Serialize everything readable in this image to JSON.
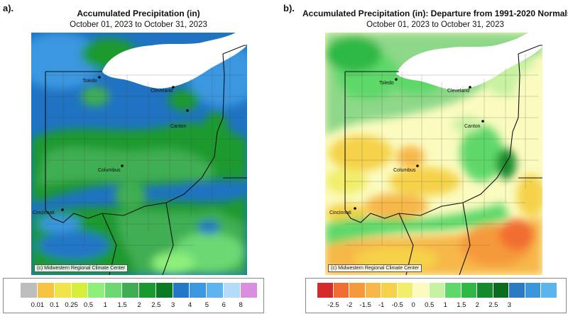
{
  "panels": [
    {
      "letter": "a).",
      "title": "Accumulated Precipitation (in)",
      "subtitle": "October 01, 2023 to October 31, 2023",
      "credit": "(c) Midwestern Regional Climate Center",
      "cities": [
        "Toledo",
        "Cleveland",
        "Canton",
        "Columbus",
        "Cincinnati"
      ],
      "legend": {
        "colors": [
          "#bdbdbd",
          "#f5c242",
          "#f0e44a",
          "#d6f03a",
          "#8ef07a",
          "#6cd873",
          "#3fae53",
          "#1a9a2e",
          "#0a7a22",
          "#2277c6",
          "#3a97e0",
          "#5fb4f0",
          "#b3dcf8",
          "#d98ee0"
        ],
        "ticks": [
          "0.01",
          "0.1",
          "0.25",
          "0.5",
          "1",
          "1.5",
          "2",
          "2.5",
          "3",
          "4",
          "5",
          "6",
          "8"
        ]
      }
    },
    {
      "letter": "b).",
      "title": "Accumulated Precipitation (in): Departure from 1991-2020 Normals",
      "subtitle": "October 01, 2023 to October 31, 2023",
      "credit": "(c) Midwestern Regional Climate Center",
      "cities": [
        "Toledo",
        "Cleveland",
        "Canton",
        "Columbus",
        "Cincinnati"
      ],
      "legend": {
        "colors": [
          "#d62a2a",
          "#f26d32",
          "#f59a3a",
          "#f7b74a",
          "#f5d24a",
          "#f2ee6a",
          "#fbfbbf",
          "#c7f2a2",
          "#5fd86a",
          "#2fb845",
          "#148a2a",
          "#0b6b1e",
          "#2a7ac4",
          "#3b96dc",
          "#5cb4ec"
        ],
        "ticks": [
          "-2.5",
          "-2",
          "-1.5",
          "-1",
          "-0.5",
          "0",
          "0.5",
          "1",
          "1.5",
          "2",
          "2.5",
          "3"
        ]
      }
    }
  ]
}
